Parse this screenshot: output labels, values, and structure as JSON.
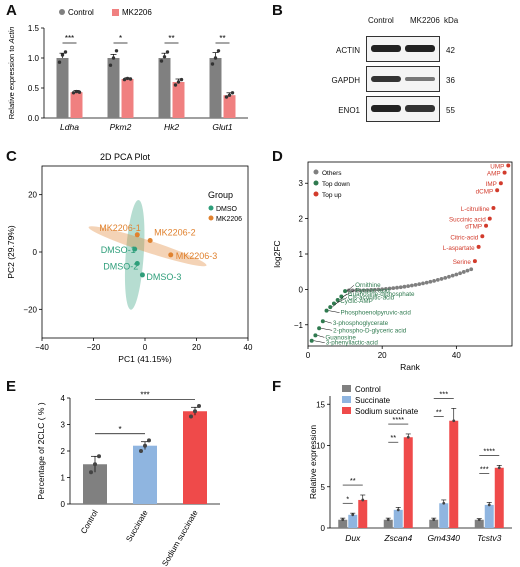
{
  "panels": {
    "A": "A",
    "B": "B",
    "C": "C",
    "D": "D",
    "E": "E",
    "F": "F"
  },
  "colors": {
    "control": "#808080",
    "treat": "#f08080",
    "dmso": "#2e9e7a",
    "mk": "#e0822f",
    "others": "#7f7f7f",
    "down": "#2f7a4f",
    "up": "#d23b2c",
    "succ": "#8fb5e0",
    "sodium": "#ef4a4a"
  },
  "panel_a": {
    "chart_data": {
      "type": "bar",
      "categories": [
        "Ldha",
        "Pkm2",
        "Hk2",
        "Glut1"
      ],
      "series": [
        {
          "name": "Control",
          "values": [
            1.0,
            1.0,
            1.0,
            1.0
          ]
        },
        {
          "name": "MK2206",
          "values": [
            0.43,
            0.65,
            0.6,
            0.38
          ]
        }
      ],
      "errors": [
        [
          0.08,
          0.06,
          0.08,
          0.09
        ],
        [
          0.03,
          0.02,
          0.05,
          0.04
        ]
      ],
      "points": [
        [
          [
            0.93,
            1.05,
            1.1
          ],
          [
            0.88,
            1.0,
            1.12
          ],
          [
            0.95,
            1.02,
            1.1
          ],
          [
            0.9,
            1.0,
            1.12
          ]
        ],
        [
          [
            0.42,
            0.44,
            0.43
          ],
          [
            0.64,
            0.66,
            0.65
          ],
          [
            0.55,
            0.6,
            0.64
          ],
          [
            0.35,
            0.38,
            0.42
          ]
        ]
      ],
      "significance": [
        "***",
        "*",
        "**",
        "**"
      ],
      "ylabel": "Relative expression to Actin",
      "yticks": [
        "0.0",
        "0.5",
        "1.0",
        "1.5"
      ],
      "ylim": [
        0,
        1.5
      ]
    }
  },
  "panel_b": {
    "cols": [
      "Control",
      "MK2206"
    ],
    "unit": "kDa",
    "rows": [
      {
        "label": "ACTIN",
        "kda": "42"
      },
      {
        "label": "GAPDH",
        "kda": "36"
      },
      {
        "label": "ENO1",
        "kda": "55"
      }
    ]
  },
  "panel_c": {
    "chart_data": {
      "type": "scatter",
      "title": "2D PCA Plot",
      "xlabel": "PC1 (41.15%)",
      "ylabel": "PC2 (29.79%)",
      "xlim": [
        -40,
        40
      ],
      "ylim": [
        -30,
        30
      ],
      "xticks": [
        "−40",
        "−20",
        "0",
        "20",
        "40"
      ],
      "yticks": [
        "−20",
        "0",
        "20"
      ],
      "legend_title": "Group",
      "series": [
        {
          "name": "DMSO",
          "points": [
            {
              "x": -4,
              "y": 1,
              "label": "DMSO-1"
            },
            {
              "x": -3,
              "y": -4,
              "label": "DMSO-2"
            },
            {
              "x": -1,
              "y": -8,
              "label": "DMSO-3"
            }
          ]
        },
        {
          "name": "MK2206",
          "points": [
            {
              "x": -3,
              "y": 6,
              "label": "MK2206-1"
            },
            {
              "x": 2,
              "y": 4,
              "label": "MK2206-2"
            },
            {
              "x": 10,
              "y": -1,
              "label": "MK2206-3"
            }
          ]
        }
      ]
    }
  },
  "panel_d": {
    "chart_data": {
      "type": "scatter",
      "xlabel": "Rank",
      "ylabel": "log2FC",
      "xlim": [
        0,
        55
      ],
      "ylim": [
        -1.6,
        3.6
      ],
      "xticks": [
        "0",
        "20",
        "40"
      ],
      "yticks": [
        "−1",
        "0",
        "1",
        "2",
        "3"
      ],
      "legend": [
        "Others",
        "Top down",
        "Top up"
      ],
      "top_up": [
        {
          "name": "UMP",
          "rank": 54,
          "fc": 3.5
        },
        {
          "name": "AMP",
          "rank": 53,
          "fc": 3.3
        },
        {
          "name": "IMP",
          "rank": 52,
          "fc": 3.0
        },
        {
          "name": "dCMP",
          "rank": 51,
          "fc": 2.8
        },
        {
          "name": "L-citrulline",
          "rank": 50,
          "fc": 2.3
        },
        {
          "name": "Succinic acid",
          "rank": 49,
          "fc": 2.0
        },
        {
          "name": "dTMP",
          "rank": 48,
          "fc": 1.8
        },
        {
          "name": "Citric-acid",
          "rank": 47,
          "fc": 1.5
        },
        {
          "name": "L-aspartate",
          "rank": 46,
          "fc": 1.2
        },
        {
          "name": "Serine",
          "rank": 45,
          "fc": 0.8
        }
      ],
      "top_down": [
        {
          "name": "Ornithine",
          "rank": 10,
          "fc": -0.05
        },
        {
          "name": "Pyruvic-acid",
          "rank": 9,
          "fc": -0.2
        },
        {
          "name": "Guanosine-diphosphate",
          "rank": 8,
          "fc": -0.3
        },
        {
          "name": "Cis-aconitic-acid",
          "rank": 7,
          "fc": -0.4
        },
        {
          "name": "Cyclic-AMP",
          "rank": 6,
          "fc": -0.5
        },
        {
          "name": "Phosphoenolpyruvic-acid",
          "rank": 5,
          "fc": -0.6
        },
        {
          "name": "3-phosphoglycerate",
          "rank": 4,
          "fc": -0.9
        },
        {
          "name": "2-phospho-D-glyceric acid",
          "rank": 3,
          "fc": -1.1
        },
        {
          "name": "Guanosine",
          "rank": 2,
          "fc": -1.3
        },
        {
          "name": "3-phenyllactic-acid",
          "rank": 1,
          "fc": -1.45
        }
      ]
    }
  },
  "panel_e": {
    "chart_data": {
      "type": "bar",
      "categories": [
        "Control",
        "Succinate",
        "Sodium succinate"
      ],
      "values": [
        1.5,
        2.2,
        3.5
      ],
      "errors": [
        0.3,
        0.15,
        0.15
      ],
      "points": [
        [
          1.2,
          1.5,
          1.8
        ],
        [
          2.0,
          2.2,
          2.4
        ],
        [
          3.3,
          3.5,
          3.7
        ]
      ],
      "ylabel": "Percentage of 2CLC ( % )",
      "yticks": [
        "0",
        "1",
        "2",
        "3",
        "4"
      ],
      "ylim": [
        0,
        4
      ],
      "significance": [
        {
          "from": 0,
          "to": 1,
          "label": "*"
        },
        {
          "from": 0,
          "to": 2,
          "label": "***"
        }
      ]
    }
  },
  "panel_f": {
    "chart_data": {
      "type": "bar",
      "categories": [
        "Dux",
        "Zscan4",
        "Gm4340",
        "Tcstv3"
      ],
      "series": [
        {
          "name": "Control",
          "values": [
            1.0,
            1.0,
            1.0,
            1.0
          ]
        },
        {
          "name": "Succinate",
          "values": [
            1.6,
            2.2,
            3.0,
            2.8
          ]
        },
        {
          "name": "Sodium succinate",
          "values": [
            3.4,
            11.0,
            13.0,
            7.3
          ]
        }
      ],
      "errors": [
        [
          0.2,
          0.2,
          0.2,
          0.15
        ],
        [
          0.2,
          0.3,
          0.4,
          0.3
        ],
        [
          0.6,
          0.4,
          1.5,
          0.3
        ]
      ],
      "ylabel": "Relative expression",
      "yticks": [
        "0",
        "5",
        "10",
        "15"
      ],
      "ylim": [
        0,
        16
      ],
      "sig_groups": [
        [
          "*",
          "**"
        ],
        [
          "**",
          "****"
        ],
        [
          "**",
          "***"
        ],
        [
          "***",
          "****"
        ]
      ]
    }
  }
}
